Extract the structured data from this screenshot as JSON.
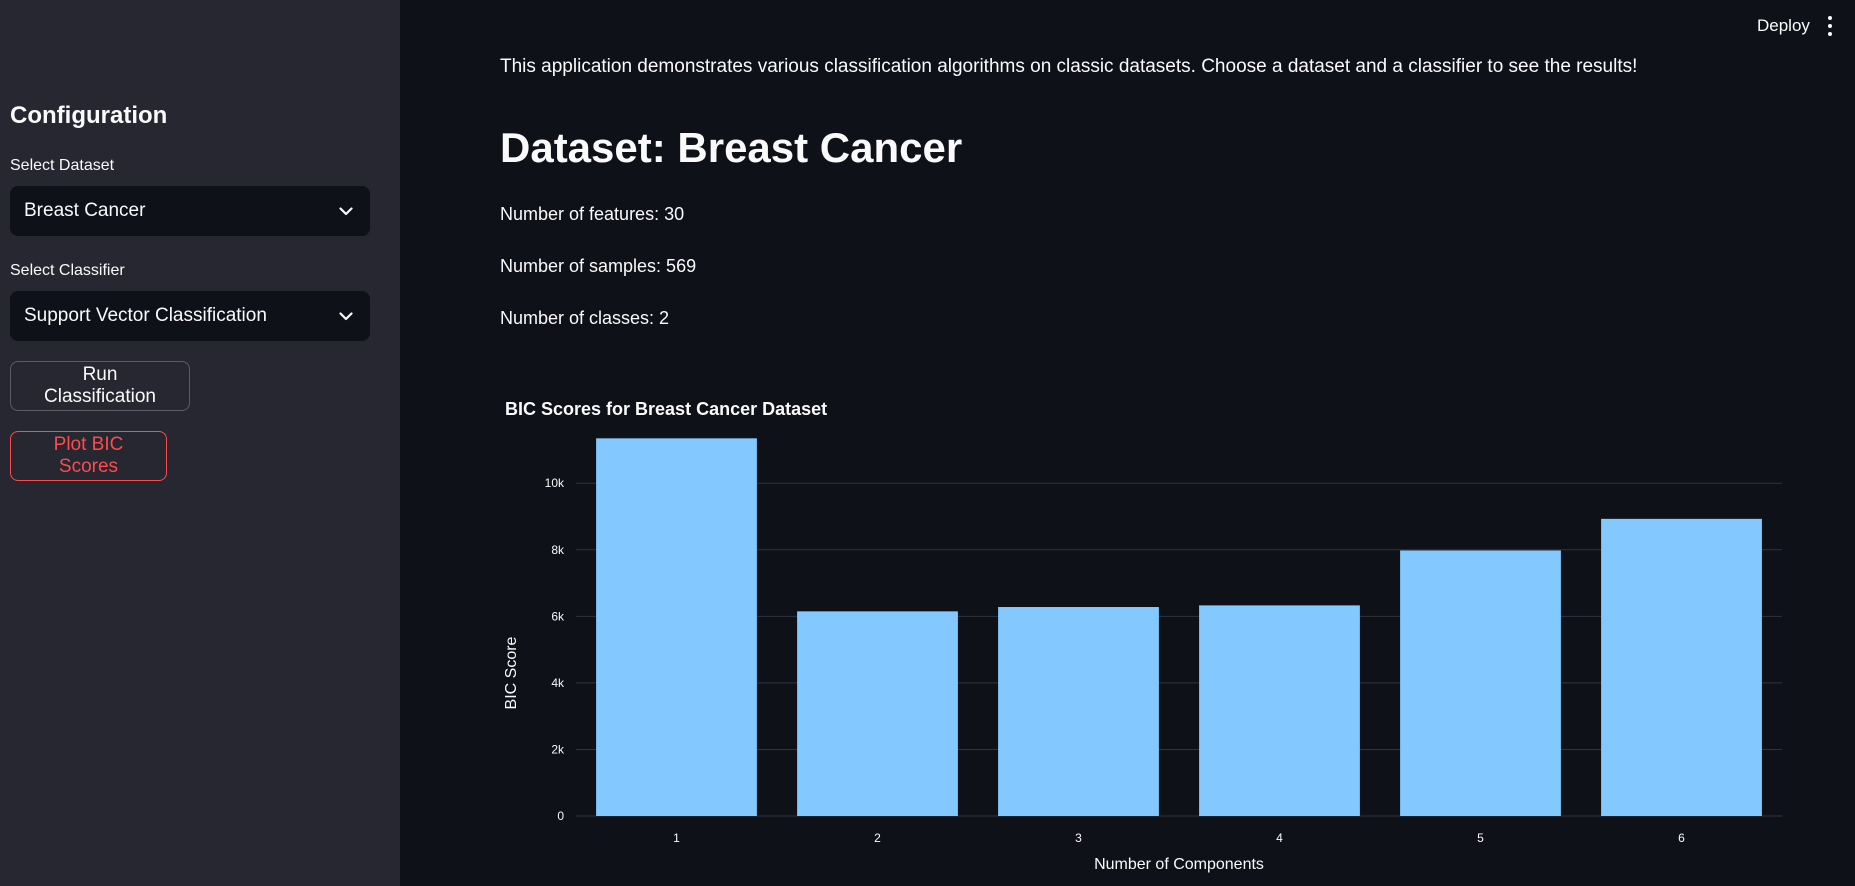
{
  "header": {
    "deploy_label": "Deploy"
  },
  "sidebar": {
    "title": "Configuration",
    "dataset_label": "Select Dataset",
    "dataset_value": "Breast Cancer",
    "classifier_label": "Select Classifier",
    "classifier_value": "Support Vector Classification",
    "run_button": "Run Classification",
    "plot_button": "Plot BIC Scores"
  },
  "main": {
    "intro": "This application demonstrates various classification algorithms on classic datasets. Choose a dataset and a classifier to see the results!",
    "dataset_heading": "Dataset: Breast Cancer",
    "features": "Number of features: 30",
    "samples": "Number of samples: 569",
    "classes": "Number of classes: 2"
  },
  "colors": {
    "bar": "#83c9ff",
    "accent": "#ff4b4b",
    "background": "#0e1117",
    "sidebar": "#262730"
  },
  "chart_data": {
    "type": "bar",
    "title": "BIC Scores for Breast Cancer Dataset",
    "xlabel": "Number of Components",
    "ylabel": "BIC Score",
    "categories": [
      "1",
      "2",
      "3",
      "4",
      "5",
      "6"
    ],
    "values": [
      11350,
      6150,
      6280,
      6330,
      7980,
      8930
    ],
    "ylim": [
      0,
      11600
    ],
    "yticks": [
      0,
      2000,
      4000,
      6000,
      8000,
      10000
    ],
    "ytick_labels": [
      "0",
      "2k",
      "4k",
      "6k",
      "8k",
      "10k"
    ],
    "grid": true
  }
}
